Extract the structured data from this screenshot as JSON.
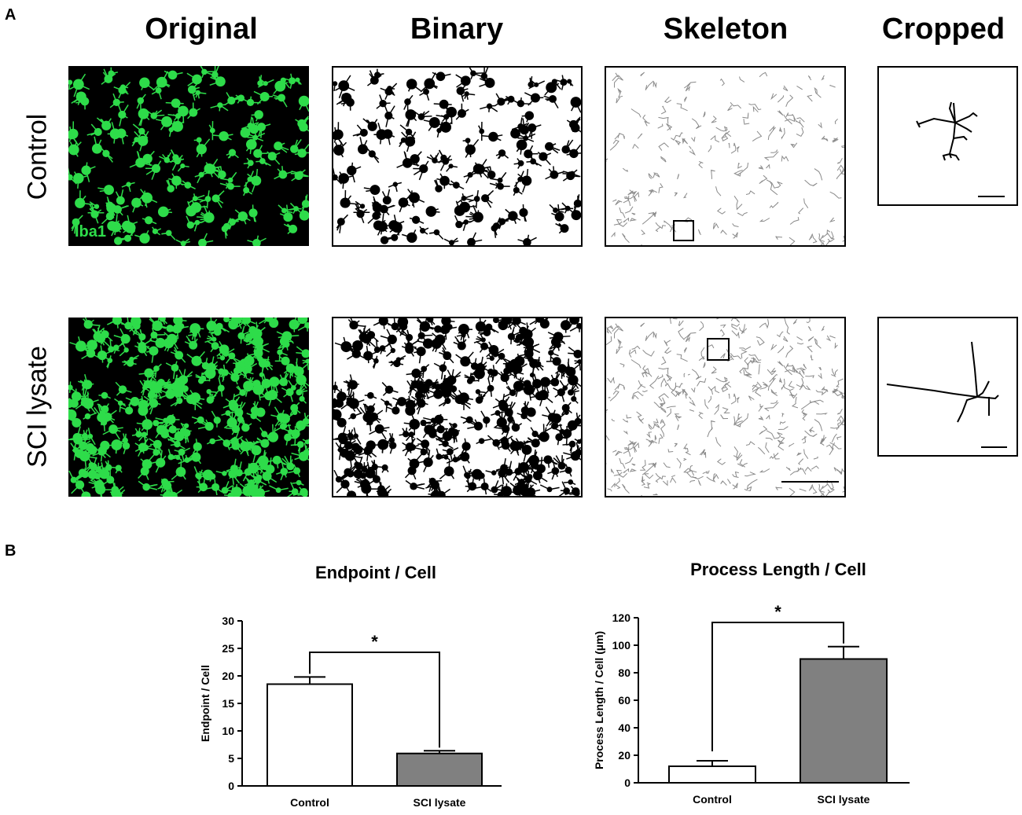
{
  "figure": {
    "panel_a_label": "A",
    "panel_b_label": "B",
    "columns": [
      "Original",
      "Binary",
      "Skeleton",
      "Cropped"
    ],
    "rows": [
      "Control",
      "SCI lysate"
    ],
    "stain_label": "Iba1",
    "colors": {
      "fluorescence": "#2edc4a",
      "background": "#000000",
      "bar_control": "#ffffff",
      "bar_sci": "#808080"
    }
  },
  "chart_data": [
    {
      "type": "bar",
      "title": "Endpoint / Cell",
      "categories": [
        "Control",
        "SCI lysate"
      ],
      "values": [
        18.5,
        5.9
      ],
      "errors": [
        1.3,
        0.5
      ],
      "ylabel": "Endpoint / Cell",
      "ylim": [
        0,
        30
      ],
      "yticks": [
        0,
        5,
        10,
        15,
        20,
        25,
        30
      ],
      "significance": "*"
    },
    {
      "type": "bar",
      "title": "Process Length / Cell",
      "categories": [
        "Control",
        "SCI lysate"
      ],
      "values": [
        12,
        90
      ],
      "errors": [
        4,
        9
      ],
      "ylabel": "Process Length /  Cell (µm)",
      "ylim": [
        0,
        120
      ],
      "yticks": [
        0,
        20,
        40,
        60,
        80,
        100,
        120
      ],
      "significance": "*"
    }
  ]
}
